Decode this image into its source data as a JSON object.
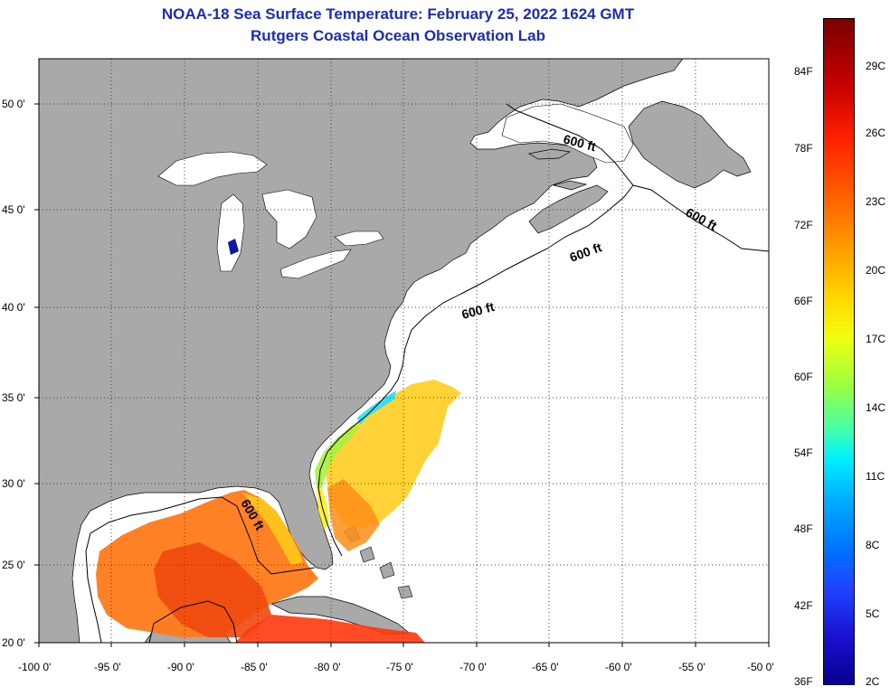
{
  "title": "NOAA-18 Sea Surface Temperature:  February 25, 2022 1624 GMT",
  "subtitle": "Rutgers Coastal Ocean Observation Lab",
  "lat_labels": [
    "50 0'",
    "45 0'",
    "40 0'",
    "35 0'",
    "30 0'",
    "25 0'",
    "20 0'"
  ],
  "lon_labels": [
    "-100 0'",
    "-95 0'",
    "-90 0'",
    "-85 0'",
    "-80 0'",
    "-75 0'",
    "-70 0'",
    "-65 0'",
    "-60 0'",
    "-55 0'",
    "-50 0'"
  ],
  "contour_label": "600 ft",
  "colorbar": {
    "fahrenheit": [
      "84F",
      "78F",
      "72F",
      "66F",
      "60F",
      "54F",
      "48F",
      "42F",
      "36F"
    ],
    "celsius": [
      "29C",
      "26C",
      "23C",
      "20C",
      "17C",
      "14C",
      "11C",
      "8C",
      "5C",
      "2C"
    ]
  },
  "colors": {
    "title": "#1a2bbd",
    "land": "#a9a9a9",
    "ocean": "#ffffff",
    "warm": "#ff6a10",
    "cool": "#00d8ff"
  }
}
